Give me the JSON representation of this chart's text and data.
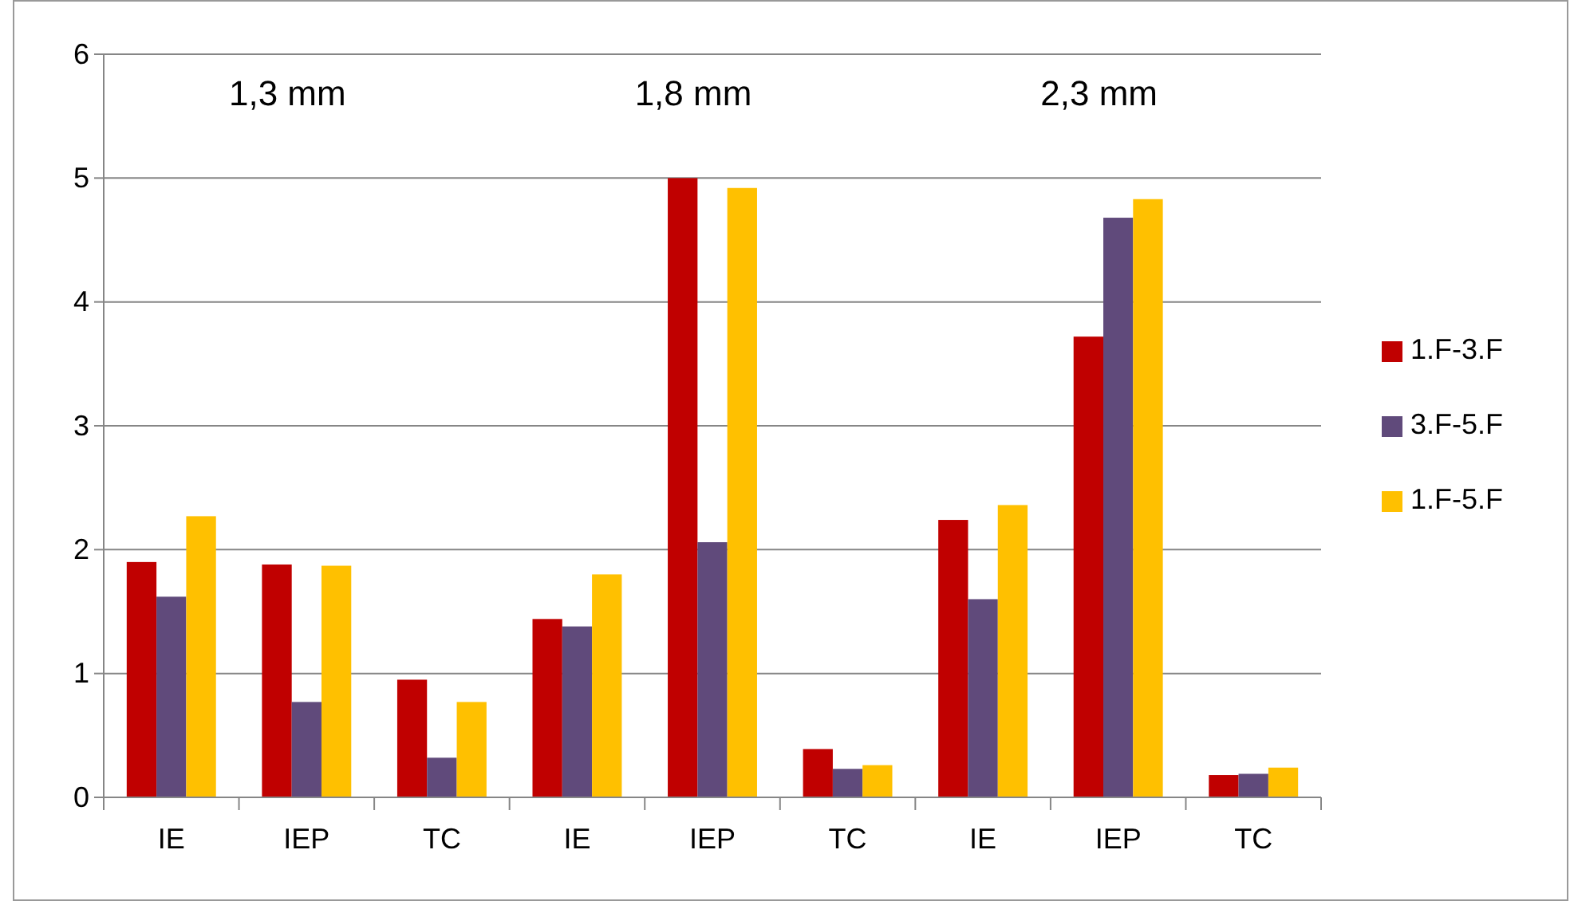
{
  "chart_data": {
    "type": "bar",
    "categories": [
      "IE",
      "IEP",
      "TC",
      "IE",
      "IEP",
      "TC",
      "IE",
      "IEP",
      "TC"
    ],
    "series": [
      {
        "name": "1.F-3.F",
        "color": "#c00000",
        "values": [
          1.9,
          1.88,
          0.95,
          1.44,
          5.0,
          0.39,
          2.24,
          3.72,
          0.18
        ]
      },
      {
        "name": "3.F-5.F",
        "color": "#604a7b",
        "values": [
          1.62,
          0.77,
          0.32,
          1.38,
          2.06,
          0.23,
          1.6,
          4.68,
          0.19
        ]
      },
      {
        "name": "1.F-5.F",
        "color": "#ffc000",
        "values": [
          2.27,
          1.87,
          0.77,
          1.8,
          4.92,
          0.26,
          2.36,
          4.83,
          0.24
        ]
      }
    ],
    "ylim": [
      0,
      6
    ],
    "yticks": [
      0,
      1,
      2,
      3,
      4,
      5,
      6
    ],
    "grid": "y",
    "legend": "right",
    "annotations": [
      "1,3 mm",
      "1,8 mm",
      "2,3 mm"
    ]
  }
}
